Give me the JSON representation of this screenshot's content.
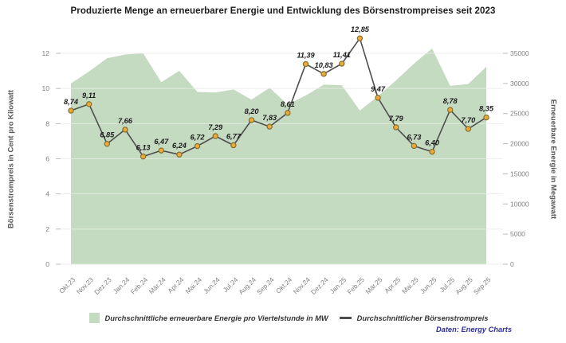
{
  "title": "Produzierte Menge an erneuerbarer Energie und Entwicklung des Börsenstrompreises seit 2023",
  "axes": {
    "left_title": "Börsenstrompreis in Cent pro Kilowatt",
    "right_title": "Erneuerbare Energie in Megawatt",
    "left_ticks": [
      0,
      2,
      4,
      6,
      8,
      10,
      12
    ],
    "right_ticks": [
      0,
      5000,
      10000,
      15000,
      20000,
      25000,
      30000,
      35000
    ]
  },
  "legend": {
    "area_label": "Durchschnittliche erneuerbare Energie pro Viertelstunde in MW",
    "line_label": "Durchschnittlicher Börsenstrompreis"
  },
  "attribution": "Daten: Energy Charts",
  "colors": {
    "area_fill": "#c5dbc1",
    "line": "#4e4e4e",
    "marker_fill": "#ecaa3e",
    "marker_stroke": "#86702b",
    "gridline": "#e1e1e1",
    "tick_text": "#808080",
    "data_label": "#1a1a1a",
    "attribution_text": "#2e2e9c"
  },
  "chart_data": {
    "type": "combo",
    "categories": [
      "Okt.23",
      "Nov.23",
      "Dez.23",
      "Jan.24",
      "Feb.24",
      "Mär.24",
      "Apr.24",
      "Mai.24",
      "Jun.24",
      "Jul.24",
      "Aug.24",
      "Sep.24",
      "Okt.24",
      "Nov.24",
      "Dez.24",
      "Jan.25",
      "Feb.25",
      "Mär.25",
      "Apr.25",
      "Mai.25",
      "Jun.25",
      "Jul.25",
      "Aug.25",
      "Sep.25"
    ],
    "series": [
      {
        "name": "Durchschnittliche erneuerbare Energie pro Viertelstunde in MW",
        "type": "area",
        "axis": "right",
        "unit": "MW",
        "values": [
          30000,
          32000,
          34200,
          34800,
          35000,
          30200,
          32100,
          28600,
          28500,
          29000,
          27300,
          29300,
          26500,
          28000,
          29800,
          29700,
          25500,
          27900,
          30500,
          33300,
          35800,
          29600,
          29900,
          32800
        ]
      },
      {
        "name": "Durchschnittlicher Börsenstrompreis",
        "type": "line",
        "axis": "left",
        "unit": "Cent pro Kilowatt",
        "values": [
          8.74,
          9.11,
          6.85,
          7.66,
          6.13,
          6.47,
          6.24,
          6.72,
          7.29,
          6.77,
          8.2,
          7.83,
          8.61,
          11.39,
          10.83,
          11.41,
          12.85,
          9.47,
          7.79,
          6.73,
          6.4,
          8.78,
          7.7,
          8.35
        ],
        "data_labels_visible": true
      }
    ],
    "left_axis_range": [
      0,
      12
    ],
    "right_axis_range": [
      0,
      35000
    ],
    "grid": "horizontal",
    "legend_position": "bottom",
    "decimal_separator": ","
  }
}
